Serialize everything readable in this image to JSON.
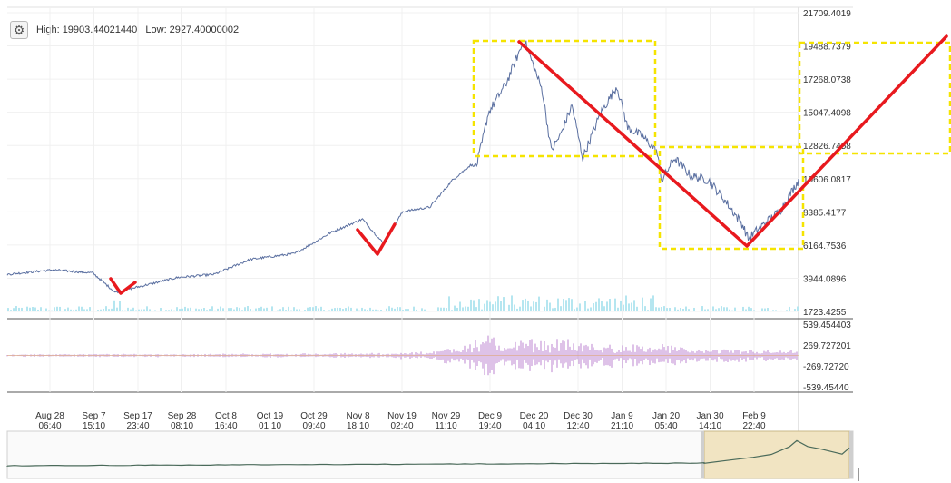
{
  "header": {
    "settings_icon": "gear-icon",
    "high_label": "High:",
    "high_value": "19903.44021440",
    "low_label": "Low:",
    "low_value": "2927.40000002"
  },
  "chart_data": [
    {
      "type": "line",
      "panel": "price",
      "y_ticks": [
        "21709.4019",
        "19488.7379",
        "17268.0738",
        "15047.4098",
        "12826.7458",
        "10606.0817",
        "8385.4177",
        "6164.7536",
        "3944.0896",
        "1723.4255"
      ],
      "ylim": [
        1723.4255,
        21709.4019
      ],
      "x_ticks": [
        {
          "line1": "Aug 28",
          "line2": "06:40"
        },
        {
          "line1": "Sep 7",
          "line2": "15:10"
        },
        {
          "line1": "Sep 17",
          "line2": "23:40"
        },
        {
          "line1": "Sep 28",
          "line2": "08:10"
        },
        {
          "line1": "Oct 8",
          "line2": "16:40"
        },
        {
          "line1": "Oct 19",
          "line2": "01:10"
        },
        {
          "line1": "Oct 29",
          "line2": "09:40"
        },
        {
          "line1": "Nov 8",
          "line2": "18:10"
        },
        {
          "line1": "Nov 19",
          "line2": "02:40"
        },
        {
          "line1": "Nov 29",
          "line2": "11:10"
        },
        {
          "line1": "Dec 9",
          "line2": "19:40"
        },
        {
          "line1": "Dec 20",
          "line2": "04:10"
        },
        {
          "line1": "Dec 30",
          "line2": "12:40"
        },
        {
          "line1": "Jan 9",
          "line2": "21:10"
        },
        {
          "line1": "Jan 20",
          "line2": "05:40"
        },
        {
          "line1": "Jan 30",
          "line2": "14:10"
        },
        {
          "line1": "Feb 9",
          "line2": "22:40"
        }
      ],
      "key_points": [
        [
          0,
          4200
        ],
        [
          50,
          4500
        ],
        [
          95,
          4300
        ],
        [
          120,
          3000
        ],
        [
          155,
          3500
        ],
        [
          190,
          4000
        ],
        [
          230,
          4200
        ],
        [
          270,
          5200
        ],
        [
          320,
          5600
        ],
        [
          360,
          7000
        ],
        [
          395,
          7900
        ],
        [
          418,
          6300
        ],
        [
          440,
          8400
        ],
        [
          470,
          8700
        ],
        [
          495,
          10500
        ],
        [
          515,
          11500
        ],
        [
          522,
          11500
        ],
        [
          528,
          13000
        ],
        [
          535,
          15000
        ],
        [
          555,
          17000
        ],
        [
          575,
          19900
        ],
        [
          595,
          16500
        ],
        [
          605,
          12500
        ],
        [
          615,
          13500
        ],
        [
          628,
          15500
        ],
        [
          640,
          12000
        ],
        [
          660,
          15000
        ],
        [
          678,
          16800
        ],
        [
          690,
          14000
        ],
        [
          705,
          13500
        ],
        [
          722,
          12500
        ],
        [
          728,
          10500
        ],
        [
          742,
          12000
        ],
        [
          760,
          10800
        ],
        [
          780,
          10500
        ],
        [
          800,
          9000
        ],
        [
          818,
          7500
        ],
        [
          824,
          6600
        ],
        [
          840,
          7500
        ],
        [
          860,
          8500
        ],
        [
          880,
          10500
        ]
      ],
      "series_color": "#5a6fa0",
      "volume_color": "#b5e6f0",
      "grid": true
    },
    {
      "type": "bar",
      "panel": "oscillator",
      "y_ticks": [
        "539.454403",
        "269.727201",
        "-269.72720",
        "-539.45440"
      ],
      "ylim": [
        -539.454403,
        539.454403
      ],
      "activity": [
        [
          0,
          20
        ],
        [
          200,
          25
        ],
        [
          400,
          35
        ],
        [
          480,
          60
        ],
        [
          490,
          140
        ],
        [
          540,
          300
        ],
        [
          560,
          220
        ],
        [
          610,
          260
        ],
        [
          650,
          200
        ],
        [
          720,
          160
        ],
        [
          800,
          100
        ],
        [
          870,
          80
        ]
      ],
      "bar_color": "#c79ad9"
    },
    {
      "type": "area",
      "panel": "navigator",
      "selection_color": "#f1e4c2",
      "line_color": "#4a6a5a"
    }
  ],
  "annotations": {
    "color_box": "#f5e400",
    "color_line": "#e8191e"
  }
}
